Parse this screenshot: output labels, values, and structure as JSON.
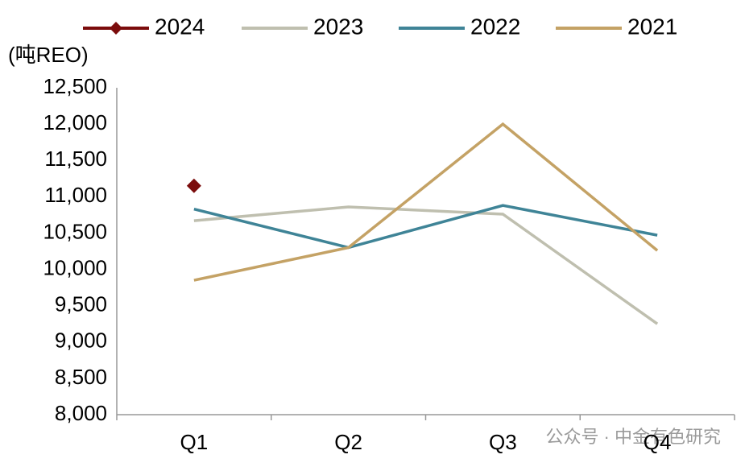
{
  "chart_data": {
    "type": "line",
    "unit_label": "(吨REO)",
    "watermark": "公众号 · 中金有色研究",
    "categories": [
      "Q1",
      "Q2",
      "Q3",
      "Q4"
    ],
    "series": [
      {
        "name": "2024",
        "color": "#7b0c0c",
        "marker": "diamond",
        "values": [
          11150,
          null,
          null,
          null
        ]
      },
      {
        "name": "2023",
        "color": "#bfbfaf",
        "values": [
          10670,
          10860,
          10760,
          9250
        ]
      },
      {
        "name": "2022",
        "color": "#3f8497",
        "values": [
          10830,
          10300,
          10880,
          10470
        ]
      },
      {
        "name": "2021",
        "color": "#c4a265",
        "values": [
          9850,
          10300,
          12000,
          10260
        ]
      }
    ],
    "ylim": [
      8000,
      12500
    ],
    "yticks": [
      {
        "value": 8000,
        "label": "8,000"
      },
      {
        "value": 8500,
        "label": "8,500"
      },
      {
        "value": 9000,
        "label": "9,000"
      },
      {
        "value": 9500,
        "label": "9,500"
      },
      {
        "value": 10000,
        "label": "10,000"
      },
      {
        "value": 10500,
        "label": "10,500"
      },
      {
        "value": 11000,
        "label": "11,000"
      },
      {
        "value": 11500,
        "label": "11,500"
      },
      {
        "value": 12000,
        "label": "12,000"
      },
      {
        "value": 12500,
        "label": "12,500"
      }
    ],
    "grid": false,
    "legend": "top"
  }
}
